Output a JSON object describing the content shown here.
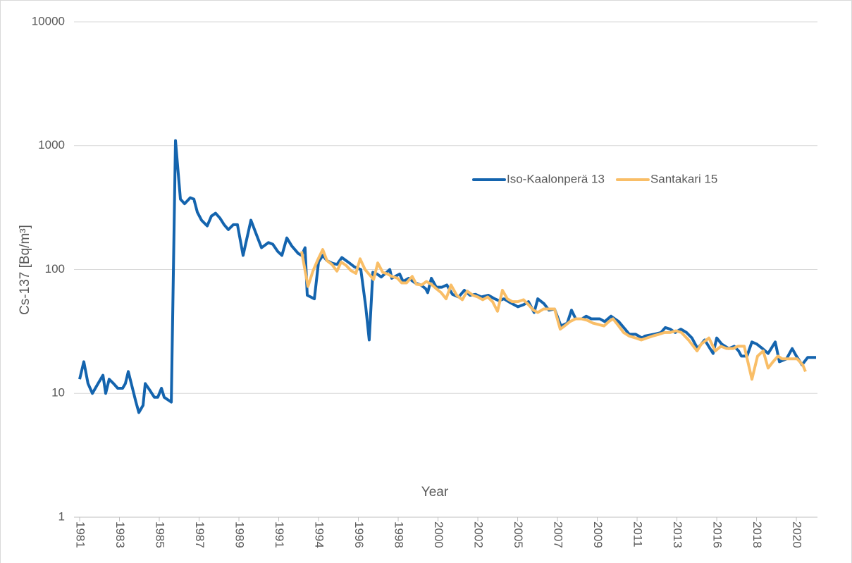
{
  "chart_data": {
    "type": "line",
    "x_label": "Year",
    "y_label": "Cs-137 [Bq/m³]",
    "log_y": true,
    "grid": true,
    "legend": "right",
    "xlim": [
      1981.05,
      2021.46
    ],
    "xticks": [
      {
        "value": 1981.05,
        "label": "1981"
      },
      {
        "value": 1983.235,
        "label": "1983"
      },
      {
        "value": 1985.42,
        "label": "1985"
      },
      {
        "value": 1987.605,
        "label": "1987"
      },
      {
        "value": 1989.79,
        "label": "1989"
      },
      {
        "value": 1991.975,
        "label": "1991"
      },
      {
        "value": 1994.16,
        "label": "1994"
      },
      {
        "value": 1996.345,
        "label": "1996"
      },
      {
        "value": 1998.53,
        "label": "1998"
      },
      {
        "value": 2000.715,
        "label": "2000"
      },
      {
        "value": 2002.9,
        "label": "2002"
      },
      {
        "value": 2005.085,
        "label": "2005"
      },
      {
        "value": 2007.27,
        "label": "2007"
      },
      {
        "value": 2009.455,
        "label": "2009"
      },
      {
        "value": 2011.64,
        "label": "2011"
      },
      {
        "value": 2013.825,
        "label": "2013"
      },
      {
        "value": 2016.01,
        "label": "2016"
      },
      {
        "value": 2018.195,
        "label": "2018"
      },
      {
        "value": 2020.38,
        "label": "2020"
      }
    ],
    "ylim": [
      1,
      10000
    ],
    "yticks": [
      1,
      10,
      100,
      1000,
      10000
    ],
    "series": [
      {
        "name": "Iso-Kaalonperä 13",
        "color": "#1464ae",
        "x": [
          1981.05,
          1981.28,
          1981.51,
          1981.75,
          1982.06,
          1982.33,
          1982.48,
          1982.67,
          1982.91,
          1983.14,
          1983.41,
          1983.56,
          1983.72,
          1983.95,
          1984.14,
          1984.3,
          1984.53,
          1984.65,
          1984.92,
          1985.15,
          1985.34,
          1985.54,
          1985.69,
          1986.08,
          1986.31,
          1986.58,
          1986.81,
          1987.12,
          1987.32,
          1987.51,
          1987.74,
          1988.05,
          1988.28,
          1988.51,
          1988.75,
          1988.98,
          1989.21,
          1989.48,
          1989.71,
          1990.02,
          1990.45,
          1990.76,
          1991.03,
          1991.41,
          1991.65,
          1991.92,
          1992.15,
          1992.42,
          1992.69,
          1993.04,
          1993.23,
          1993.42,
          1993.54,
          1993.93,
          1994.16,
          1994.39,
          1994.62,
          1994.93,
          1995.17,
          1995.44,
          1995.78,
          1996.13,
          1996.48,
          1996.75,
          1996.94,
          1997.14,
          1997.37,
          1997.6,
          1998.07,
          1998.18,
          1998.61,
          1998.8,
          1999.11,
          1999.46,
          1999.77,
          2000.04,
          2000.15,
          2000.35,
          2000.62,
          2000.93,
          2001.2,
          2001.51,
          2001.85,
          2002.16,
          2002.47,
          2002.78,
          2003.09,
          2003.48,
          2003.83,
          2004.06,
          2004.33,
          2004.68,
          2005.1,
          2005.41,
          2005.68,
          2005.99,
          2006.19,
          2006.53,
          2006.8,
          2007.11,
          2007.46,
          2007.81,
          2008.04,
          2008.27,
          2008.62,
          2008.85,
          2009.12,
          2009.59,
          2009.86,
          2010.21,
          2010.63,
          2010.98,
          2011.21,
          2011.56,
          2011.91,
          2012.06,
          2012.57,
          2012.95,
          2013.19,
          2013.46,
          2013.73,
          2014.04,
          2014.35,
          2014.65,
          2014.96,
          2015.35,
          2015.81,
          2016.01,
          2016.28,
          2016.67,
          2016.97,
          2017.21,
          2017.36,
          2017.67,
          2017.94,
          2018.21,
          2018.52,
          2018.83,
          2019.22,
          2019.45,
          2019.84,
          2020.15,
          2020.38,
          2020.69,
          2021.0,
          2021.46
        ],
        "values": [
          13,
          18,
          12,
          10,
          12,
          14,
          10,
          13,
          12,
          11,
          11,
          12,
          15,
          11,
          8.5,
          7,
          8,
          12,
          10.5,
          9.3,
          9.3,
          11,
          9.3,
          8.5,
          1100,
          370,
          340,
          380,
          370,
          290,
          250,
          225,
          270,
          285,
          260,
          230,
          210,
          230,
          230,
          130,
          250,
          190,
          150,
          165,
          160,
          140,
          130,
          180,
          155,
          135,
          130,
          150,
          62,
          58,
          115,
          130,
          118,
          112,
          110,
          125,
          115,
          105,
          100,
          50,
          27,
          95,
          92,
          87,
          100,
          85,
          92,
          80,
          85,
          78,
          75,
          70,
          65,
          85,
          72,
          72,
          75,
          63,
          60,
          68,
          62,
          63,
          60,
          62,
          58,
          56,
          58,
          54,
          50,
          52,
          55,
          45,
          58,
          53,
          47,
          48,
          35,
          37,
          47,
          40,
          40,
          42,
          40,
          40,
          38,
          42,
          38,
          33,
          30,
          30,
          28,
          29,
          30,
          31,
          34,
          33,
          31,
          33,
          31,
          28,
          23,
          27,
          21,
          28,
          25,
          23,
          24,
          22,
          20,
          20,
          26,
          25,
          23,
          21,
          26,
          18,
          19,
          23,
          20,
          17,
          19.5,
          19.5
        ]
      },
      {
        "name": "Santakari 15",
        "color": "#f9be67",
        "x": [
          1993.23,
          1993.58,
          1993.85,
          1994.12,
          1994.39,
          1994.62,
          1994.89,
          1995.17,
          1995.4,
          1995.67,
          1995.94,
          1996.21,
          1996.44,
          1996.71,
          1996.98,
          1997.18,
          1997.41,
          1997.68,
          1997.95,
          1998.18,
          1998.49,
          1998.72,
          1998.99,
          1999.3,
          1999.53,
          1999.81,
          2000.08,
          2000.35,
          2000.62,
          2000.89,
          2001.16,
          2001.43,
          2001.74,
          2002.05,
          2002.32,
          2002.63,
          2002.9,
          2003.17,
          2003.44,
          2003.71,
          2003.98,
          2004.25,
          2004.52,
          2004.79,
          2005.1,
          2005.41,
          2005.68,
          2005.95,
          2006.19,
          2006.5,
          2006.8,
          2007.11,
          2007.42,
          2007.66,
          2007.96,
          2008.27,
          2008.58,
          2008.89,
          2009.2,
          2009.51,
          2009.82,
          2010.09,
          2010.32,
          2010.63,
          2010.9,
          2011.21,
          2011.56,
          2011.87,
          2012.18,
          2012.49,
          2012.84,
          2013.15,
          2013.46,
          2013.77,
          2014.07,
          2014.46,
          2014.93,
          2015.16,
          2015.58,
          2015.93,
          2016.24,
          2016.55,
          2016.9,
          2017.17,
          2017.52,
          2017.94,
          2018.25,
          2018.56,
          2018.83,
          2019.1,
          2019.37,
          2019.6,
          2019.88,
          2020.15,
          2020.42,
          2020.73,
          2020.88
        ],
        "values": [
          140,
          73,
          97,
          120,
          145,
          118,
          110,
          97,
          115,
          108,
          98,
          93,
          122,
          100,
          90,
          83,
          113,
          95,
          92,
          88,
          85,
          78,
          78,
          88,
          76,
          75,
          80,
          76,
          70,
          65,
          58,
          75,
          62,
          57,
          67,
          62,
          60,
          57,
          60,
          55,
          46,
          68,
          58,
          55,
          55,
          57,
          52,
          47,
          45,
          48,
          48,
          48,
          33,
          35,
          38,
          40,
          40,
          39,
          37,
          36,
          35,
          38,
          40,
          35,
          31,
          29,
          28,
          27,
          28,
          29,
          30,
          31,
          31,
          32,
          31,
          27,
          22,
          25,
          28,
          22,
          24,
          23,
          23,
          24,
          24,
          13,
          20,
          22,
          16,
          18,
          20,
          19,
          19,
          19,
          19,
          17,
          15
        ]
      }
    ]
  }
}
